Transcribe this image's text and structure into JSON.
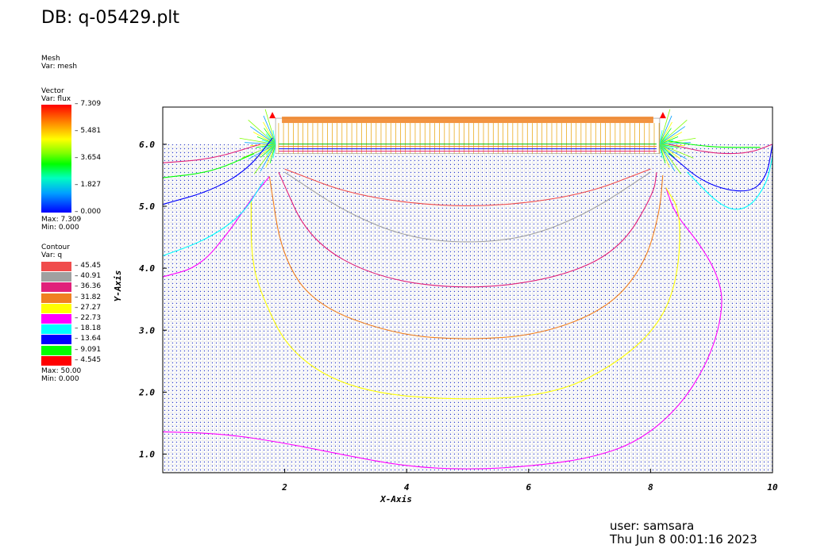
{
  "title": "DB: q-05429.plt",
  "mesh_legend": {
    "name": "Mesh",
    "var": "Var: mesh"
  },
  "vector_legend": {
    "name": "Vector",
    "var": "Var: flux",
    "ticks": [
      "7.309",
      "5.481",
      "3.654",
      "1.827",
      "0.000"
    ],
    "max": "Max:  7.309",
    "min": "Min:  0.000"
  },
  "contour_legend": {
    "name": "Contour",
    "var": "Var: q",
    "levels": [
      {
        "label": "45.45",
        "color": "#f04c4c"
      },
      {
        "label": "40.91",
        "color": "#a0a0a0"
      },
      {
        "label": "36.36",
        "color": "#e0207a"
      },
      {
        "label": "31.82",
        "color": "#f08020"
      },
      {
        "label": "27.27",
        "color": "#ffff00"
      },
      {
        "label": "22.73",
        "color": "#ff00ff"
      },
      {
        "label": "18.18",
        "color": "#00ffff"
      },
      {
        "label": "13.64",
        "color": "#0000ff"
      },
      {
        "label": "9.091",
        "color": "#00ff00"
      },
      {
        "label": "4.545",
        "color": "#ff0000"
      }
    ],
    "max": "Max:  50.00",
    "min": "Min:  0.000"
  },
  "footer": {
    "user": "user: samsara",
    "date": "Thu Jun  8 00:01:16 2023"
  },
  "chart_data": {
    "type": "contour",
    "xlabel": "X-Axis",
    "ylabel": "Y-Axis",
    "xlim": [
      0,
      10
    ],
    "ylim": [
      0.7,
      6.6
    ],
    "x_ticks": [
      {
        "value": 2,
        "label": "2"
      },
      {
        "value": 4,
        "label": "4"
      },
      {
        "value": 6,
        "label": "6"
      },
      {
        "value": 8,
        "label": "8"
      },
      {
        "value": 10,
        "label": "10"
      }
    ],
    "y_ticks": [
      {
        "value": 1,
        "label": "1.0"
      },
      {
        "value": 2,
        "label": "2.0"
      },
      {
        "value": 3,
        "label": "3.0"
      },
      {
        "value": 4,
        "label": "4.0"
      },
      {
        "value": 5,
        "label": "5.0"
      },
      {
        "value": 6,
        "label": "6.0"
      }
    ],
    "contours": [
      {
        "level": 22.73,
        "color": "#ff00ff",
        "points": [
          [
            0,
            1.36
          ],
          [
            1,
            1.33
          ],
          [
            2,
            1.18
          ],
          [
            3,
            0.98
          ],
          [
            4,
            0.8
          ],
          [
            5,
            0.75
          ],
          [
            6,
            0.8
          ],
          [
            7,
            0.93
          ],
          [
            7.8,
            1.2
          ],
          [
            8.5,
            1.78
          ],
          [
            9,
            2.6
          ],
          [
            9.2,
            3.4
          ],
          [
            9.1,
            3.9
          ],
          [
            8.8,
            4.4
          ],
          [
            8.4,
            4.88
          ],
          [
            8.25,
            5.3
          ]
        ]
      },
      {
        "level": 22.73,
        "color": "#ff00ff",
        "points": [
          [
            0,
            3.86
          ],
          [
            0.6,
            4.02
          ],
          [
            1.1,
            4.6
          ],
          [
            1.45,
            5.12
          ],
          [
            1.75,
            5.48
          ]
        ]
      },
      {
        "level": 27.27,
        "color": "#ffff00",
        "points": [
          [
            1.45,
            5.1
          ],
          [
            1.45,
            4.2
          ],
          [
            1.6,
            3.6
          ],
          [
            2.1,
            2.6
          ],
          [
            3.2,
            2.0
          ],
          [
            5,
            1.86
          ],
          [
            6.5,
            1.98
          ],
          [
            7.5,
            2.5
          ],
          [
            8.15,
            3.1
          ],
          [
            8.45,
            3.85
          ],
          [
            8.5,
            4.9
          ],
          [
            8.25,
            5.3
          ]
        ]
      },
      {
        "level": 31.82,
        "color": "#f08020",
        "points": [
          [
            1.75,
            5.48
          ],
          [
            1.95,
            4.2
          ],
          [
            2.5,
            3.4
          ],
          [
            3.8,
            2.93
          ],
          [
            5,
            2.84
          ],
          [
            6.2,
            2.93
          ],
          [
            7.3,
            3.35
          ],
          [
            7.9,
            4.05
          ],
          [
            8.15,
            4.9
          ],
          [
            8.2,
            5.5
          ]
        ]
      },
      {
        "level": 36.36,
        "color": "#e0207a",
        "points": [
          [
            1.9,
            5.55
          ],
          [
            2.4,
            4.45
          ],
          [
            3.5,
            3.84
          ],
          [
            5,
            3.65
          ],
          [
            6.5,
            3.84
          ],
          [
            7.5,
            4.3
          ],
          [
            8.05,
            5.2
          ],
          [
            8.1,
            5.55
          ]
        ]
      },
      {
        "level": 40.91,
        "color": "#a0a0a0",
        "points": [
          [
            2.0,
            5.55
          ],
          [
            3,
            4.9
          ],
          [
            4,
            4.5
          ],
          [
            5,
            4.4
          ],
          [
            6,
            4.5
          ],
          [
            7,
            4.9
          ],
          [
            8.0,
            5.55
          ]
        ]
      },
      {
        "level": 45.45,
        "color": "#f04c4c",
        "points": [
          [
            2.0,
            5.6
          ],
          [
            3.2,
            5.15
          ],
          [
            5,
            4.96
          ],
          [
            6.8,
            5.15
          ],
          [
            8.0,
            5.6
          ]
        ]
      },
      {
        "level": 36.36,
        "color": "#e0207a",
        "points": [
          [
            0,
            5.7
          ],
          [
            0.8,
            5.76
          ],
          [
            1.6,
            6.0
          ]
        ]
      },
      {
        "level": 13.64,
        "color": "#0000ff",
        "points": [
          [
            0,
            5.03
          ],
          [
            0.8,
            5.25
          ],
          [
            1.4,
            5.6
          ],
          [
            1.8,
            6.1
          ]
        ]
      },
      {
        "level": 9.091,
        "color": "#00ff00",
        "points": [
          [
            0,
            5.46
          ],
          [
            0.8,
            5.55
          ],
          [
            1.5,
            5.85
          ]
        ]
      },
      {
        "level": 18.18,
        "color": "#00ffff",
        "points": [
          [
            0,
            4.2
          ],
          [
            0.7,
            4.45
          ],
          [
            1.3,
            4.85
          ],
          [
            1.65,
            5.4
          ]
        ]
      },
      {
        "level": 36.36,
        "color": "#e0207a",
        "points": [
          [
            8.3,
            6.0
          ],
          [
            9,
            5.85
          ],
          [
            9.6,
            5.85
          ],
          [
            10,
            6.0
          ]
        ]
      },
      {
        "level": 13.64,
        "color": "#0000ff",
        "points": [
          [
            8.3,
            5.85
          ],
          [
            8.9,
            5.35
          ],
          [
            9.6,
            5.2
          ],
          [
            9.9,
            5.45
          ],
          [
            10,
            6.0
          ]
        ]
      },
      {
        "level": 18.18,
        "color": "#00ffff",
        "points": [
          [
            8.6,
            5.55
          ],
          [
            9.2,
            4.95
          ],
          [
            9.6,
            4.95
          ],
          [
            9.9,
            5.35
          ],
          [
            10,
            5.8
          ]
        ]
      },
      {
        "level": 9.091,
        "color": "#00ff00",
        "points": [
          [
            8.3,
            6.05
          ],
          [
            9,
            5.95
          ],
          [
            9.8,
            5.95
          ]
        ]
      }
    ],
    "structure": {
      "left": 1.85,
      "right": 8.15,
      "bottom": 5.85,
      "top": 6.42
    }
  }
}
